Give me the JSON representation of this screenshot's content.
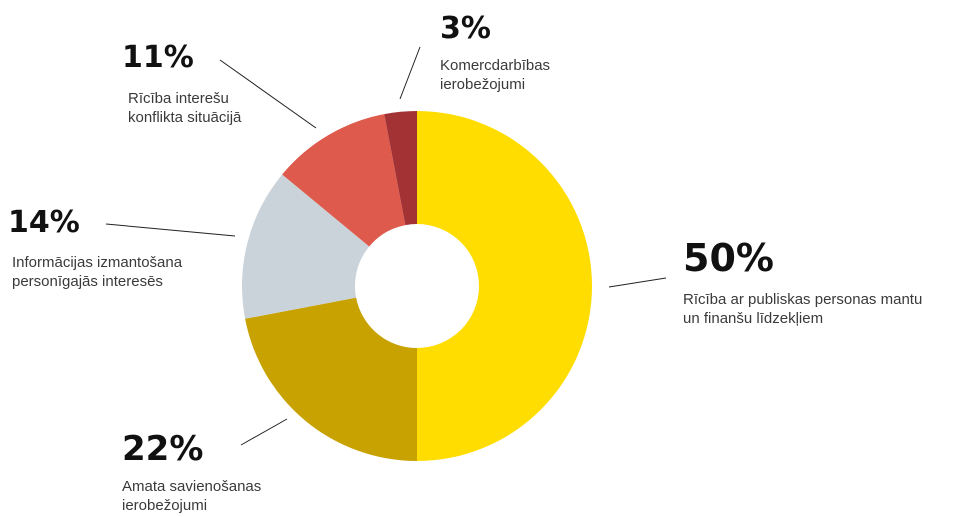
{
  "chart_data": {
    "type": "pie",
    "variant": "donut",
    "title": "",
    "legend": "none (leader-line labels)",
    "slices": [
      {
        "label_lines": [
          "Rīcība ar publiskas personas mantu",
          "un finanšu līdzekļiem"
        ],
        "percent_text": "50%",
        "value": 50,
        "color": "#FFDD00"
      },
      {
        "label_lines": [
          "Amata savienošanas",
          "ierobežojumi"
        ],
        "percent_text": "22%",
        "value": 22,
        "color": "#C8A200"
      },
      {
        "label_lines": [
          "Informācijas izmantošana",
          "personīgajās interesēs"
        ],
        "percent_text": "14%",
        "value": 14,
        "color": "#CBD3DA"
      },
      {
        "label_lines": [
          "Rīcība interešu",
          "konflikta situācijā"
        ],
        "percent_text": "11%",
        "value": 11,
        "color": "#DE5A4C"
      },
      {
        "label_lines": [
          "Komercdarbības",
          "ierobežojumi"
        ],
        "percent_text": "3%",
        "value": 3,
        "color": "#A33235"
      }
    ]
  }
}
